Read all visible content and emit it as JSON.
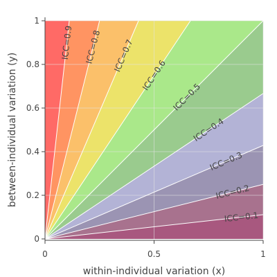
{
  "chart_data": {
    "type": "area",
    "xlabel": "within-individual variation (x)",
    "ylabel": "between-individual variation (y)",
    "xlim": [
      0,
      1
    ],
    "ylim": [
      0,
      1
    ],
    "xticks": [
      {
        "value": 0,
        "label": "0"
      },
      {
        "value": 0.5,
        "label": "0.5"
      },
      {
        "value": 1,
        "label": "1"
      }
    ],
    "yticks": [
      {
        "value": 0,
        "label": "0"
      },
      {
        "value": 0.2,
        "label": "0.2"
      },
      {
        "value": 0.4,
        "label": "0.4"
      },
      {
        "value": 0.6,
        "label": "0.6"
      },
      {
        "value": 0.8,
        "label": "0.8"
      },
      {
        "value": 1,
        "label": "1"
      }
    ],
    "grid": true,
    "legend": "none",
    "boundaries": [
      {
        "icc": 0.1,
        "label": "ICC=0.1",
        "label_x": 0.9
      },
      {
        "icc": 0.2,
        "label": "ICC=0.2",
        "label_x": 0.86
      },
      {
        "icc": 0.3,
        "label": "ICC=0.3",
        "label_x": 0.83
      },
      {
        "icc": 0.4,
        "label": "ICC=0.4",
        "label_x": 0.75
      },
      {
        "icc": 0.5,
        "label": "ICC=0.5",
        "label_x": 0.65
      },
      {
        "icc": 0.6,
        "label": "ICC=0.6",
        "label_x": 0.5
      },
      {
        "icc": 0.7,
        "label": "ICC=0.7",
        "label_x": 0.36
      },
      {
        "icc": 0.8,
        "label": "ICC=0.8",
        "label_x": 0.22
      },
      {
        "icc": 0.9,
        "label": "ICC=0.9",
        "label_x": 0.1
      }
    ],
    "bands": [
      {
        "icc_low": 0.0,
        "icc_high": 0.1,
        "color": "#a8587f"
      },
      {
        "icc_low": 0.1,
        "icc_high": 0.2,
        "color": "#a8728e"
      },
      {
        "icc_low": 0.2,
        "icc_high": 0.3,
        "color": "#9b94b3"
      },
      {
        "icc_low": 0.3,
        "icc_high": 0.4,
        "color": "#b3b3d6"
      },
      {
        "icc_low": 0.4,
        "icc_high": 0.5,
        "color": "#9acb8e"
      },
      {
        "icc_low": 0.5,
        "icc_high": 0.6,
        "color": "#aae88a"
      },
      {
        "icc_low": 0.6,
        "icc_high": 0.7,
        "color": "#ece36a"
      },
      {
        "icc_low": 0.7,
        "icc_high": 0.8,
        "color": "#fbc06a"
      },
      {
        "icc_low": 0.8,
        "icc_high": 0.9,
        "color": "#ff9462"
      },
      {
        "icc_low": 0.9,
        "icc_high": 1.0,
        "color": "#ff6a66"
      }
    ]
  }
}
